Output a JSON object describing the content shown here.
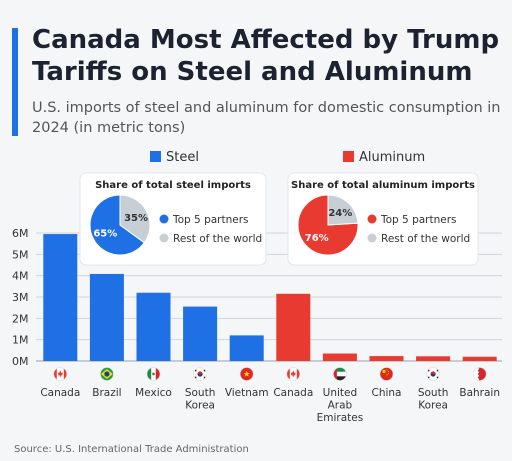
{
  "title": "Canada Most Affected by Trump Tariffs on Steel and Aluminum",
  "subtitle": "U.S. imports of steel and aluminum for domestic consumption in 2024 (in metric tons)",
  "source": "Source: U.S. International Trade Administration",
  "colors": {
    "steel": "#1f6fe5",
    "aluminum": "#e83a30",
    "accent": "#1f6fe5",
    "rest": "#c6ced6",
    "grid": "#cfd5dc"
  },
  "chart_data": [
    {
      "type": "bar",
      "legend": [
        "Steel",
        "Aluminum"
      ],
      "legend_placement": "top",
      "categories": [
        "Canada",
        "Brazil",
        "Mexico",
        "South Korea",
        "Vietnam",
        "Canada",
        "United Arab Emirates",
        "China",
        "South Korea",
        "Bahrain"
      ],
      "flags": [
        "canada-flag-icon",
        "brazil-flag-icon",
        "mexico-flag-icon",
        "south-korea-flag-icon",
        "vietnam-flag-icon",
        "canada-flag-icon",
        "uae-flag-icon",
        "china-flag-icon",
        "south-korea-flag-icon",
        "bahrain-flag-icon"
      ],
      "series": [
        {
          "name": "Steel",
          "values": [
            5950000,
            4080000,
            3200000,
            2550000,
            1200000,
            null,
            null,
            null,
            null,
            null
          ]
        },
        {
          "name": "Aluminum",
          "values": [
            null,
            null,
            null,
            null,
            null,
            3150000,
            350000,
            230000,
            220000,
            200000
          ]
        }
      ],
      "yticks": [
        "0M",
        "1M",
        "2M",
        "3M",
        "4M",
        "5M",
        "6M"
      ],
      "ylim": [
        0,
        6000000
      ],
      "grid": true
    },
    {
      "type": "pie",
      "title": "Share of total steel imports",
      "labels": [
        "Top 5 partners",
        "Rest of the world"
      ],
      "values": [
        65,
        35
      ],
      "value_labels": [
        "65%",
        "35%"
      ],
      "colors": [
        "#1f6fe5",
        "#c6ced6"
      ]
    },
    {
      "type": "pie",
      "title": "Share of total aluminum imports",
      "labels": [
        "Top 5 partners",
        "Rest of the world"
      ],
      "values": [
        76,
        24
      ],
      "value_labels": [
        "76%",
        "24%"
      ],
      "colors": [
        "#e83a30",
        "#c6ced6"
      ]
    }
  ]
}
